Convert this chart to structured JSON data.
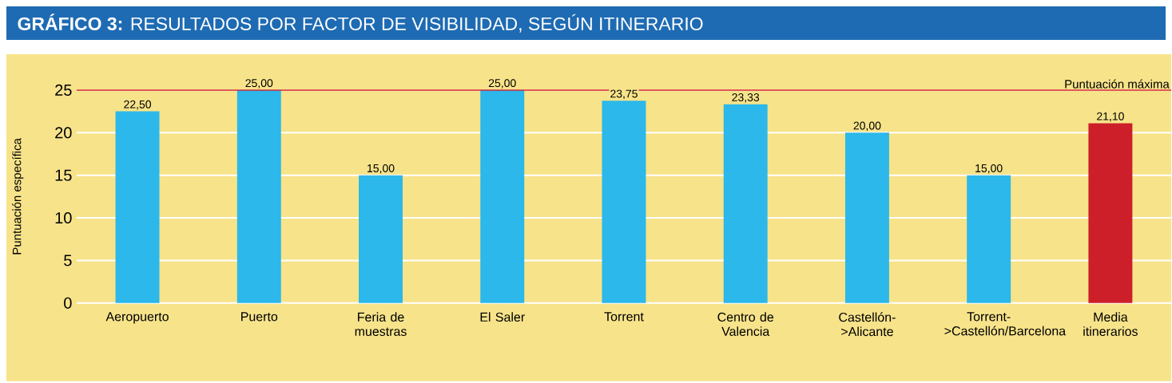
{
  "chart_data": {
    "type": "bar",
    "title": "**GRÁFICO 3:** RESULTADOS POR FACTOR DE VISIBILIDAD, SEGÚN ITINERARIO",
    "ylabel": "Puntuación específica",
    "categories": [
      "Aeropuerto",
      "Puerto",
      "Feria de muestras",
      "El Saler",
      "Torrent",
      "Centro de Valencia",
      "Castellón->Alicante",
      "Torrent->Castellón/Barcelona",
      "Media itinerarios"
    ],
    "values": [
      22.5,
      25,
      15,
      25,
      23.75,
      23.33,
      20,
      15,
      21.1
    ],
    "value_labels": [
      "22,50",
      "25,00",
      "15,00",
      "25,00",
      "23,75",
      "23,33",
      "20,00",
      "15,00",
      "21,10"
    ],
    "colors": [
      "#2cb8ea",
      "#2cb8ea",
      "#2cb8ea",
      "#2cb8ea",
      "#2cb8ea",
      "#2cb8ea",
      "#2cb8ea",
      "#2cb8ea",
      "#cc1f2a"
    ],
    "ylim": [
      0,
      25
    ],
    "yticks": [
      0,
      5,
      10,
      15,
      20,
      25
    ],
    "grid": "y",
    "ref_lines": [
      {
        "axis": "y",
        "value": 25,
        "label": "Puntuación máxima",
        "color": "#d2232a"
      }
    ]
  }
}
